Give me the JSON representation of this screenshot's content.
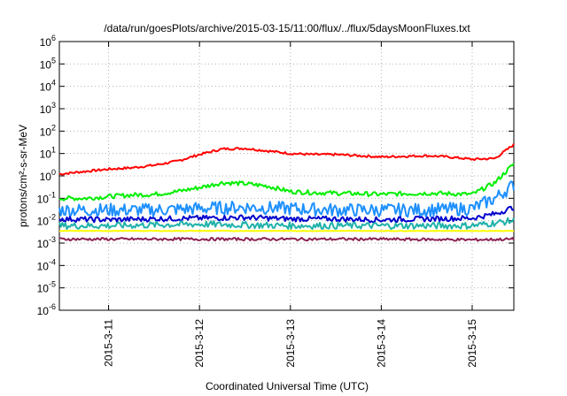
{
  "chart_data": {
    "type": "line",
    "title": "/data/run/goesPlots/archive/2015-03-15/11:00/flux/../flux/5daysMoonFluxes.txt",
    "xlabel": "Coordinated Universal Time (UTC)",
    "ylabel": "protons/cm²-s-sr-MeV",
    "yscale": "log",
    "ylim": [
      1e-06,
      1000000.0
    ],
    "xlim": [
      "2015-03-10T11:00",
      "2015-03-15T11:00"
    ],
    "y_ticks": [
      {
        "base": "10",
        "exp": "-6",
        "value": 1e-06
      },
      {
        "base": "10",
        "exp": "-5",
        "value": 1e-05
      },
      {
        "base": "10",
        "exp": "-4",
        "value": 0.0001
      },
      {
        "base": "10",
        "exp": "-3",
        "value": 0.001
      },
      {
        "base": "10",
        "exp": "-2",
        "value": 0.01
      },
      {
        "base": "10",
        "exp": "-1",
        "value": 0.1
      },
      {
        "base": "10",
        "exp": "0",
        "value": 1
      },
      {
        "base": "10",
        "exp": "1",
        "value": 10
      },
      {
        "base": "10",
        "exp": "2",
        "value": 100
      },
      {
        "base": "10",
        "exp": "3",
        "value": 1000
      },
      {
        "base": "10",
        "exp": "4",
        "value": 10000
      },
      {
        "base": "10",
        "exp": "5",
        "value": 100000
      },
      {
        "base": "10",
        "exp": "6",
        "value": 1000000
      }
    ],
    "x_ticks": [
      {
        "label": "2015-3-11",
        "x": "2015-03-11T00:00"
      },
      {
        "label": "2015-3-12",
        "x": "2015-03-12T00:00"
      },
      {
        "label": "2015-3-13",
        "x": "2015-03-13T00:00"
      },
      {
        "label": "2015-3-14",
        "x": "2015-03-14T00:00"
      },
      {
        "label": "2015-3-15",
        "x": "2015-03-15T00:00"
      }
    ],
    "grid": true,
    "series": [
      {
        "color": "#ff0000",
        "x": [
          "2015-03-10T11:00",
          "2015-03-10T18:00",
          "2015-03-11T00:00",
          "2015-03-11T06:00",
          "2015-03-11T12:00",
          "2015-03-11T18:00",
          "2015-03-12T00:00",
          "2015-03-12T06:00",
          "2015-03-12T12:00",
          "2015-03-12T18:00",
          "2015-03-13T00:00",
          "2015-03-13T06:00",
          "2015-03-13T12:00",
          "2015-03-13T18:00",
          "2015-03-14T00:00",
          "2015-03-14T06:00",
          "2015-03-14T12:00",
          "2015-03-14T18:00",
          "2015-03-15T00:00",
          "2015-03-15T06:00",
          "2015-03-15T11:00"
        ],
        "y": [
          1.2,
          1.6,
          2.0,
          2.3,
          3.0,
          4.5,
          9.0,
          16,
          17,
          13,
          10,
          9,
          9,
          8,
          7,
          7.5,
          8,
          7,
          5.5,
          6,
          25
        ]
      },
      {
        "color": "#00ee00",
        "x": [
          "2015-03-10T11:00",
          "2015-03-10T18:00",
          "2015-03-11T00:00",
          "2015-03-11T06:00",
          "2015-03-11T12:00",
          "2015-03-11T18:00",
          "2015-03-12T00:00",
          "2015-03-12T06:00",
          "2015-03-12T12:00",
          "2015-03-12T18:00",
          "2015-03-13T00:00",
          "2015-03-13T06:00",
          "2015-03-13T12:00",
          "2015-03-13T18:00",
          "2015-03-14T00:00",
          "2015-03-14T06:00",
          "2015-03-14T12:00",
          "2015-03-14T18:00",
          "2015-03-15T00:00",
          "2015-03-15T06:00",
          "2015-03-15T11:00"
        ],
        "y": [
          0.1,
          0.1,
          0.12,
          0.14,
          0.15,
          0.2,
          0.3,
          0.5,
          0.45,
          0.35,
          0.2,
          0.18,
          0.17,
          0.16,
          0.15,
          0.16,
          0.17,
          0.16,
          0.15,
          0.5,
          3.5
        ]
      },
      {
        "color": "#1e90ff",
        "x": [
          "2015-03-10T11:00",
          "2015-03-11T00:00",
          "2015-03-11T12:00",
          "2015-03-12T00:00",
          "2015-03-12T12:00",
          "2015-03-13T00:00",
          "2015-03-13T12:00",
          "2015-03-14T00:00",
          "2015-03-14T12:00",
          "2015-03-15T00:00",
          "2015-03-15T06:00",
          "2015-03-15T11:00"
        ],
        "y": [
          0.03,
          0.03,
          0.03,
          0.035,
          0.04,
          0.035,
          0.03,
          0.03,
          0.03,
          0.035,
          0.1,
          0.4
        ]
      },
      {
        "color": "#0000cd",
        "x": [
          "2015-03-10T11:00",
          "2015-03-11T00:00",
          "2015-03-11T12:00",
          "2015-03-12T00:00",
          "2015-03-12T12:00",
          "2015-03-13T00:00",
          "2015-03-13T12:00",
          "2015-03-14T00:00",
          "2015-03-14T12:00",
          "2015-03-15T00:00",
          "2015-03-15T06:00",
          "2015-03-15T11:00"
        ],
        "y": [
          0.012,
          0.011,
          0.012,
          0.013,
          0.014,
          0.012,
          0.012,
          0.011,
          0.012,
          0.013,
          0.02,
          0.04
        ]
      },
      {
        "color": "#20b2aa",
        "x": [
          "2015-03-10T11:00",
          "2015-03-11T00:00",
          "2015-03-12T00:00",
          "2015-03-13T00:00",
          "2015-03-14T00:00",
          "2015-03-15T00:00",
          "2015-03-15T11:00"
        ],
        "y": [
          0.006,
          0.006,
          0.007,
          0.006,
          0.006,
          0.006,
          0.01
        ]
      },
      {
        "color": "#ffff00",
        "x": [
          "2015-03-10T11:00",
          "2015-03-11T00:00",
          "2015-03-12T00:00",
          "2015-03-13T00:00",
          "2015-03-14T00:00",
          "2015-03-15T00:00",
          "2015-03-15T11:00"
        ],
        "y": [
          0.0035,
          0.0035,
          0.0035,
          0.0035,
          0.0035,
          0.0035,
          0.0035
        ]
      },
      {
        "color": "#8b2252",
        "x": [
          "2015-03-10T11:00",
          "2015-03-11T00:00",
          "2015-03-12T00:00",
          "2015-03-13T00:00",
          "2015-03-14T00:00",
          "2015-03-15T00:00",
          "2015-03-15T11:00"
        ],
        "y": [
          0.0015,
          0.0015,
          0.0015,
          0.0015,
          0.0015,
          0.0014,
          0.0015
        ]
      }
    ]
  }
}
